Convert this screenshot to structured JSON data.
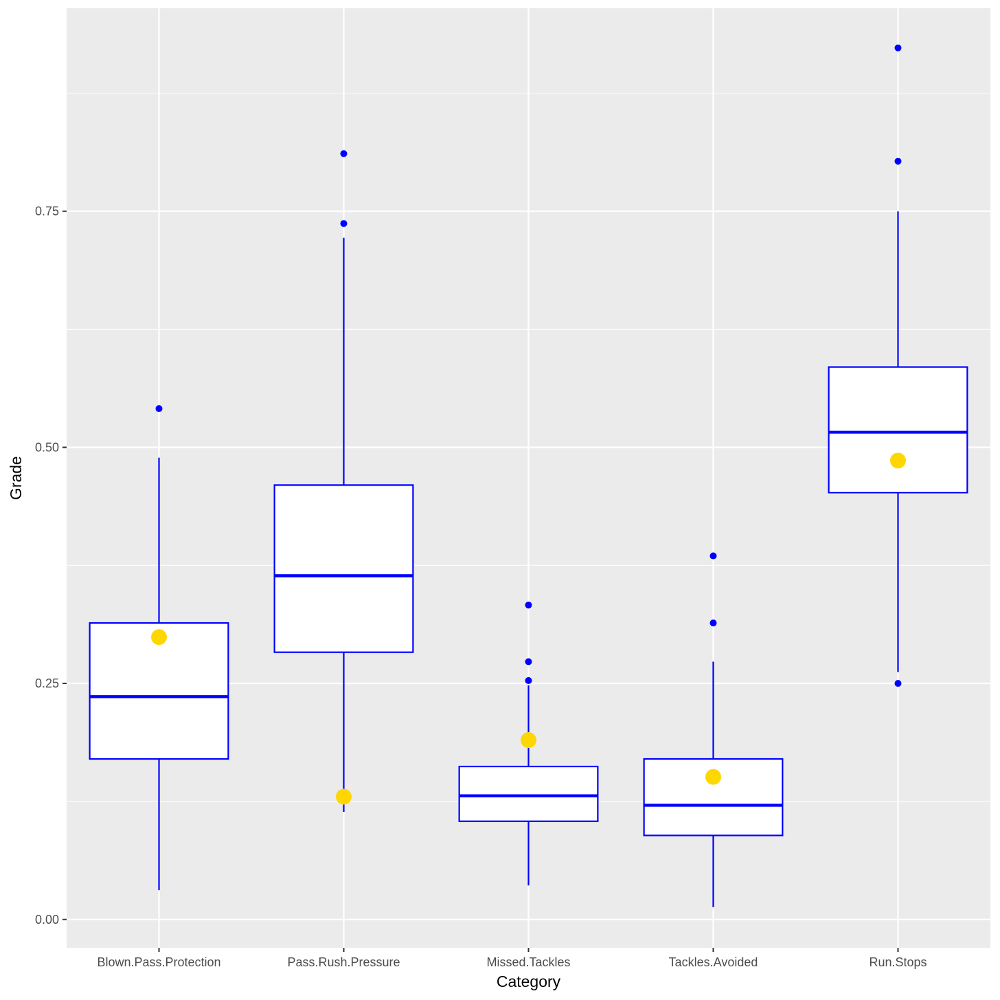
{
  "chart_data": {
    "type": "boxplot",
    "xlabel": "Category",
    "ylabel": "Grade",
    "ylim": [
      -0.03,
      0.965
    ],
    "y_ticks": [
      "0.00",
      "0.25",
      "0.50",
      "0.75"
    ],
    "y_tick_values": [
      0,
      0.25,
      0.5,
      0.75
    ],
    "y_minor_ticks": [
      0.125,
      0.375,
      0.625,
      0.875
    ],
    "grid": true,
    "colors": {
      "panel": "#ebebeb",
      "grid": "#ffffff",
      "box_outline": "#0000ff",
      "box_fill": "#ffffff",
      "highlight_point": "#ffd700"
    },
    "categories": [
      "Blown.Pass.Protection",
      "Pass.Rush.Pressure",
      "Missed.Tackles",
      "Tackles.Avoided",
      "Run.Stops"
    ],
    "boxes": [
      {
        "category": "Blown.Pass.Protection",
        "lower_whisker": 0.031,
        "q1": 0.17,
        "median": 0.236,
        "q3": 0.314,
        "upper_whisker": 0.489,
        "outliers": [
          0.541
        ],
        "highlight": 0.299
      },
      {
        "category": "Pass.Rush.Pressure",
        "lower_whisker": 0.114,
        "q1": 0.283,
        "median": 0.364,
        "q3": 0.46,
        "upper_whisker": 0.722,
        "outliers": [
          0.811,
          0.737
        ],
        "highlight": 0.13
      },
      {
        "category": "Missed.Tackles",
        "lower_whisker": 0.036,
        "q1": 0.104,
        "median": 0.131,
        "q3": 0.162,
        "upper_whisker": 0.248,
        "outliers": [
          0.333,
          0.273,
          0.253
        ],
        "highlight": 0.19
      },
      {
        "category": "Tackles.Avoided",
        "lower_whisker": 0.013,
        "q1": 0.089,
        "median": 0.121,
        "q3": 0.17,
        "upper_whisker": 0.273,
        "outliers": [
          0.385,
          0.314
        ],
        "highlight": 0.151
      },
      {
        "category": "Run.Stops",
        "lower_whisker": 0.262,
        "q1": 0.452,
        "median": 0.516,
        "q3": 0.585,
        "upper_whisker": 0.75,
        "outliers": [
          0.923,
          0.803,
          0.25
        ],
        "highlight": 0.486
      }
    ]
  }
}
